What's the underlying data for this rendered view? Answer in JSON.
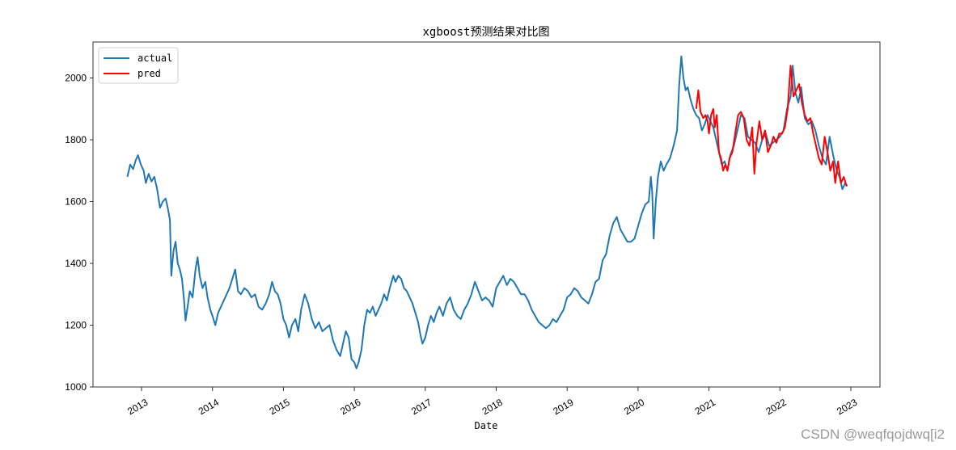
{
  "chart_data": {
    "type": "line",
    "title": "xgboost预测结果对比图",
    "xlabel": "Date",
    "ylabel": "",
    "ylim": [
      1000,
      2100
    ],
    "xlim": [
      2012.35,
      2023.35
    ],
    "grid": false,
    "legend_position": "upper left",
    "x_ticks": [
      "2013",
      "2014",
      "2015",
      "2016",
      "2017",
      "2018",
      "2019",
      "2020",
      "2021",
      "2022",
      "2023"
    ],
    "y_ticks": [
      1000,
      1200,
      1400,
      1600,
      1800,
      2000
    ],
    "series": [
      {
        "name": "actual",
        "color": "#1f77b4",
        "points": [
          [
            2012.8,
            1680
          ],
          [
            2012.84,
            1720
          ],
          [
            2012.88,
            1705
          ],
          [
            2012.92,
            1735
          ],
          [
            2012.95,
            1750
          ],
          [
            2012.99,
            1720
          ],
          [
            2013.03,
            1700
          ],
          [
            2013.06,
            1660
          ],
          [
            2013.1,
            1690
          ],
          [
            2013.14,
            1665
          ],
          [
            2013.18,
            1680
          ],
          [
            2013.22,
            1640
          ],
          [
            2013.26,
            1580
          ],
          [
            2013.3,
            1600
          ],
          [
            2013.34,
            1610
          ],
          [
            2013.37,
            1580
          ],
          [
            2013.4,
            1540
          ],
          [
            2013.42,
            1360
          ],
          [
            2013.45,
            1440
          ],
          [
            2013.48,
            1470
          ],
          [
            2013.51,
            1400
          ],
          [
            2013.54,
            1380
          ],
          [
            2013.57,
            1350
          ],
          [
            2013.6,
            1280
          ],
          [
            2013.62,
            1215
          ],
          [
            2013.65,
            1260
          ],
          [
            2013.68,
            1310
          ],
          [
            2013.72,
            1290
          ],
          [
            2013.76,
            1380
          ],
          [
            2013.79,
            1420
          ],
          [
            2013.82,
            1360
          ],
          [
            2013.86,
            1320
          ],
          [
            2013.9,
            1340
          ],
          [
            2013.93,
            1290
          ],
          [
            2013.97,
            1250
          ],
          [
            2014.0,
            1230
          ],
          [
            2014.04,
            1200
          ],
          [
            2014.08,
            1240
          ],
          [
            2014.12,
            1260
          ],
          [
            2014.16,
            1280
          ],
          [
            2014.2,
            1300
          ],
          [
            2014.24,
            1320
          ],
          [
            2014.28,
            1350
          ],
          [
            2014.32,
            1380
          ],
          [
            2014.36,
            1310
          ],
          [
            2014.4,
            1300
          ],
          [
            2014.45,
            1320
          ],
          [
            2014.5,
            1310
          ],
          [
            2014.55,
            1290
          ],
          [
            2014.6,
            1300
          ],
          [
            2014.65,
            1260
          ],
          [
            2014.7,
            1250
          ],
          [
            2014.75,
            1270
          ],
          [
            2014.8,
            1300
          ],
          [
            2014.84,
            1340
          ],
          [
            2014.88,
            1310
          ],
          [
            2014.92,
            1300
          ],
          [
            2014.96,
            1270
          ],
          [
            2015.0,
            1220
          ],
          [
            2015.04,
            1200
          ],
          [
            2015.08,
            1160
          ],
          [
            2015.12,
            1200
          ],
          [
            2015.17,
            1220
          ],
          [
            2015.21,
            1180
          ],
          [
            2015.25,
            1250
          ],
          [
            2015.3,
            1300
          ],
          [
            2015.35,
            1270
          ],
          [
            2015.4,
            1220
          ],
          [
            2015.45,
            1190
          ],
          [
            2015.5,
            1210
          ],
          [
            2015.55,
            1180
          ],
          [
            2015.6,
            1190
          ],
          [
            2015.65,
            1200
          ],
          [
            2015.7,
            1150
          ],
          [
            2015.75,
            1120
          ],
          [
            2015.8,
            1100
          ],
          [
            2015.84,
            1140
          ],
          [
            2015.88,
            1180
          ],
          [
            2015.92,
            1160
          ],
          [
            2015.96,
            1090
          ],
          [
            2016.0,
            1080
          ],
          [
            2016.03,
            1060
          ],
          [
            2016.06,
            1080
          ],
          [
            2016.1,
            1120
          ],
          [
            2016.14,
            1200
          ],
          [
            2016.18,
            1250
          ],
          [
            2016.22,
            1240
          ],
          [
            2016.26,
            1260
          ],
          [
            2016.3,
            1230
          ],
          [
            2016.34,
            1250
          ],
          [
            2016.38,
            1270
          ],
          [
            2016.42,
            1300
          ],
          [
            2016.46,
            1280
          ],
          [
            2016.5,
            1320
          ],
          [
            2016.55,
            1360
          ],
          [
            2016.58,
            1340
          ],
          [
            2016.62,
            1360
          ],
          [
            2016.66,
            1350
          ],
          [
            2016.7,
            1320
          ],
          [
            2016.74,
            1310
          ],
          [
            2016.78,
            1290
          ],
          [
            2016.82,
            1270
          ],
          [
            2016.86,
            1240
          ],
          [
            2016.9,
            1210
          ],
          [
            2016.93,
            1170
          ],
          [
            2016.96,
            1140
          ],
          [
            2017.0,
            1160
          ],
          [
            2017.04,
            1200
          ],
          [
            2017.08,
            1230
          ],
          [
            2017.12,
            1210
          ],
          [
            2017.16,
            1240
          ],
          [
            2017.2,
            1260
          ],
          [
            2017.25,
            1230
          ],
          [
            2017.3,
            1270
          ],
          [
            2017.35,
            1290
          ],
          [
            2017.4,
            1250
          ],
          [
            2017.45,
            1230
          ],
          [
            2017.5,
            1220
          ],
          [
            2017.55,
            1250
          ],
          [
            2017.6,
            1270
          ],
          [
            2017.65,
            1300
          ],
          [
            2017.7,
            1340
          ],
          [
            2017.75,
            1310
          ],
          [
            2017.8,
            1280
          ],
          [
            2017.85,
            1290
          ],
          [
            2017.9,
            1280
          ],
          [
            2017.95,
            1260
          ],
          [
            2018.0,
            1320
          ],
          [
            2018.05,
            1340
          ],
          [
            2018.1,
            1360
          ],
          [
            2018.15,
            1330
          ],
          [
            2018.2,
            1350
          ],
          [
            2018.25,
            1340
          ],
          [
            2018.3,
            1320
          ],
          [
            2018.35,
            1300
          ],
          [
            2018.4,
            1300
          ],
          [
            2018.45,
            1280
          ],
          [
            2018.5,
            1250
          ],
          [
            2018.55,
            1230
          ],
          [
            2018.6,
            1210
          ],
          [
            2018.65,
            1200
          ],
          [
            2018.7,
            1190
          ],
          [
            2018.75,
            1200
          ],
          [
            2018.8,
            1220
          ],
          [
            2018.85,
            1210
          ],
          [
            2018.9,
            1230
          ],
          [
            2018.95,
            1250
          ],
          [
            2019.0,
            1290
          ],
          [
            2019.05,
            1300
          ],
          [
            2019.1,
            1320
          ],
          [
            2019.15,
            1310
          ],
          [
            2019.2,
            1290
          ],
          [
            2019.25,
            1280
          ],
          [
            2019.3,
            1270
          ],
          [
            2019.35,
            1300
          ],
          [
            2019.4,
            1340
          ],
          [
            2019.45,
            1350
          ],
          [
            2019.5,
            1410
          ],
          [
            2019.55,
            1430
          ],
          [
            2019.6,
            1490
          ],
          [
            2019.65,
            1530
          ],
          [
            2019.7,
            1550
          ],
          [
            2019.75,
            1510
          ],
          [
            2019.8,
            1490
          ],
          [
            2019.85,
            1470
          ],
          [
            2019.9,
            1470
          ],
          [
            2019.95,
            1480
          ],
          [
            2020.0,
            1520
          ],
          [
            2020.05,
            1560
          ],
          [
            2020.1,
            1590
          ],
          [
            2020.15,
            1600
          ],
          [
            2020.18,
            1680
          ],
          [
            2020.2,
            1630
          ],
          [
            2020.22,
            1480
          ],
          [
            2020.25,
            1600
          ],
          [
            2020.28,
            1680
          ],
          [
            2020.32,
            1730
          ],
          [
            2020.36,
            1700
          ],
          [
            2020.4,
            1720
          ],
          [
            2020.45,
            1740
          ],
          [
            2020.5,
            1780
          ],
          [
            2020.55,
            1830
          ],
          [
            2020.58,
            1980
          ],
          [
            2020.61,
            2070
          ],
          [
            2020.64,
            2000
          ],
          [
            2020.67,
            1960
          ],
          [
            2020.7,
            1970
          ],
          [
            2020.74,
            1930
          ],
          [
            2020.78,
            1900
          ],
          [
            2020.82,
            1880
          ],
          [
            2020.86,
            1870
          ],
          [
            2020.9,
            1830
          ],
          [
            2020.94,
            1850
          ],
          [
            2020.98,
            1880
          ],
          [
            2021.02,
            1860
          ],
          [
            2021.06,
            1840
          ],
          [
            2021.1,
            1800
          ],
          [
            2021.14,
            1760
          ],
          [
            2021.18,
            1720
          ],
          [
            2021.22,
            1730
          ],
          [
            2021.26,
            1700
          ],
          [
            2021.3,
            1750
          ],
          [
            2021.35,
            1780
          ],
          [
            2021.4,
            1830
          ],
          [
            2021.45,
            1880
          ],
          [
            2021.5,
            1870
          ],
          [
            2021.55,
            1810
          ],
          [
            2021.6,
            1800
          ],
          [
            2021.65,
            1790
          ],
          [
            2021.7,
            1760
          ],
          [
            2021.75,
            1800
          ],
          [
            2021.8,
            1820
          ],
          [
            2021.85,
            1780
          ],
          [
            2021.9,
            1790
          ],
          [
            2021.95,
            1800
          ],
          [
            2022.0,
            1810
          ],
          [
            2022.05,
            1830
          ],
          [
            2022.1,
            1900
          ],
          [
            2022.15,
            1940
          ],
          [
            2022.18,
            2040
          ],
          [
            2022.22,
            1950
          ],
          [
            2022.26,
            1920
          ],
          [
            2022.3,
            1970
          ],
          [
            2022.35,
            1870
          ],
          [
            2022.4,
            1850
          ],
          [
            2022.45,
            1860
          ],
          [
            2022.5,
            1830
          ],
          [
            2022.55,
            1780
          ],
          [
            2022.6,
            1740
          ],
          [
            2022.65,
            1720
          ],
          [
            2022.7,
            1810
          ],
          [
            2022.75,
            1750
          ],
          [
            2022.8,
            1700
          ],
          [
            2022.84,
            1680
          ],
          [
            2022.88,
            1640
          ],
          [
            2022.92,
            1660
          ],
          [
            2022.95,
            1650
          ]
        ]
      },
      {
        "name": "pred",
        "color": "#ff0000",
        "points": [
          [
            2020.82,
            1900
          ],
          [
            2020.85,
            1960
          ],
          [
            2020.88,
            1890
          ],
          [
            2020.92,
            1870
          ],
          [
            2020.95,
            1880
          ],
          [
            2020.98,
            1860
          ],
          [
            2021.0,
            1820
          ],
          [
            2021.03,
            1880
          ],
          [
            2021.06,
            1900
          ],
          [
            2021.08,
            1840
          ],
          [
            2021.11,
            1880
          ],
          [
            2021.14,
            1760
          ],
          [
            2021.17,
            1740
          ],
          [
            2021.2,
            1700
          ],
          [
            2021.23,
            1720
          ],
          [
            2021.26,
            1700
          ],
          [
            2021.29,
            1740
          ],
          [
            2021.33,
            1760
          ],
          [
            2021.37,
            1820
          ],
          [
            2021.41,
            1880
          ],
          [
            2021.45,
            1890
          ],
          [
            2021.49,
            1870
          ],
          [
            2021.53,
            1800
          ],
          [
            2021.57,
            1780
          ],
          [
            2021.61,
            1840
          ],
          [
            2021.64,
            1690
          ],
          [
            2021.67,
            1790
          ],
          [
            2021.71,
            1860
          ],
          [
            2021.75,
            1800
          ],
          [
            2021.79,
            1830
          ],
          [
            2021.83,
            1760
          ],
          [
            2021.87,
            1780
          ],
          [
            2021.91,
            1810
          ],
          [
            2021.95,
            1790
          ],
          [
            2021.99,
            1820
          ],
          [
            2022.03,
            1820
          ],
          [
            2022.07,
            1840
          ],
          [
            2022.11,
            1900
          ],
          [
            2022.15,
            2040
          ],
          [
            2022.19,
            1940
          ],
          [
            2022.23,
            1960
          ],
          [
            2022.27,
            1980
          ],
          [
            2022.31,
            1920
          ],
          [
            2022.35,
            1880
          ],
          [
            2022.39,
            1860
          ],
          [
            2022.43,
            1870
          ],
          [
            2022.47,
            1820
          ],
          [
            2022.51,
            1780
          ],
          [
            2022.55,
            1740
          ],
          [
            2022.59,
            1720
          ],
          [
            2022.63,
            1810
          ],
          [
            2022.67,
            1760
          ],
          [
            2022.71,
            1700
          ],
          [
            2022.75,
            1730
          ],
          [
            2022.78,
            1660
          ],
          [
            2022.82,
            1730
          ],
          [
            2022.86,
            1660
          ],
          [
            2022.9,
            1680
          ],
          [
            2022.94,
            1650
          ]
        ]
      }
    ],
    "legend": [
      "actual",
      "pred"
    ]
  },
  "watermark": "CSDN @weqfqojdwq[i2"
}
